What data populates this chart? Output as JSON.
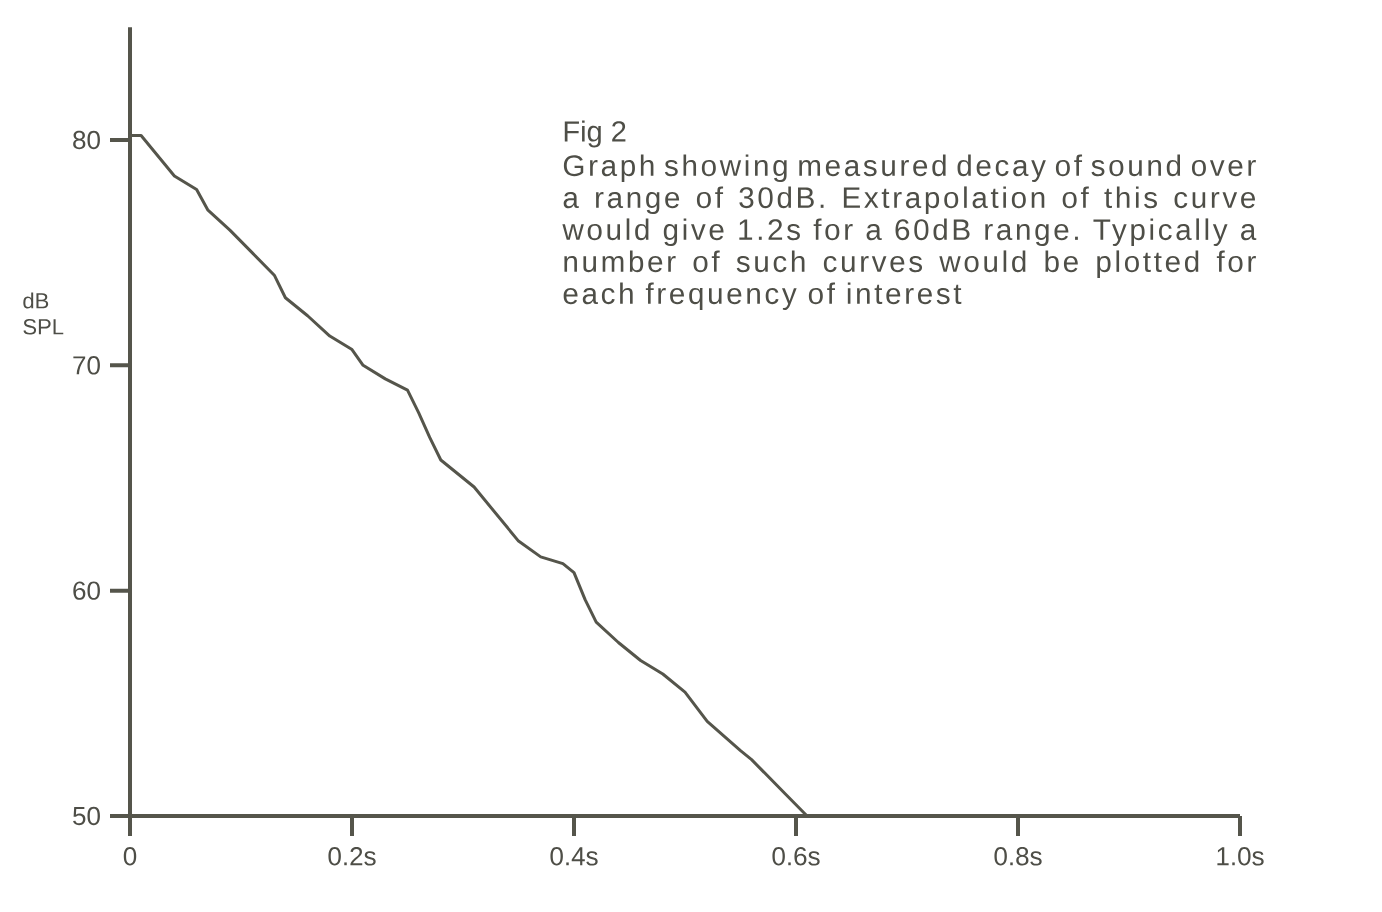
{
  "chart_data": {
    "type": "line",
    "title": "Fig 2",
    "annotations": [
      "Graph showing measured decay of sound over a range of 30dB. Extrapolation of this curve would give 1.2s for a 60dB range. Typically a number of such curves would be plotted for each frequency of interest"
    ],
    "ylabel": "dB SPL",
    "x": [
      0.0,
      0.01,
      0.03,
      0.04,
      0.06,
      0.07,
      0.09,
      0.11,
      0.13,
      0.14,
      0.16,
      0.18,
      0.2,
      0.21,
      0.23,
      0.25,
      0.26,
      0.27,
      0.28,
      0.31,
      0.33,
      0.35,
      0.37,
      0.39,
      0.4,
      0.41,
      0.42,
      0.44,
      0.46,
      0.48,
      0.5,
      0.52,
      0.55,
      0.56,
      0.59,
      0.61
    ],
    "series": [
      {
        "color": "#55554b",
        "values": [
          80.2,
          80.2,
          79.0,
          78.4,
          77.8,
          76.9,
          76.0,
          75.0,
          74.0,
          73.0,
          72.2,
          71.3,
          70.7,
          70.0,
          69.4,
          68.9,
          67.9,
          66.8,
          65.8,
          64.6,
          63.4,
          62.2,
          61.5,
          61.2,
          60.8,
          59.6,
          58.6,
          57.7,
          56.9,
          56.3,
          55.5,
          54.2,
          52.9,
          52.5,
          51.0,
          50.0
        ]
      }
    ],
    "xlim": [
      0,
      1.0
    ],
    "ylim": [
      50,
      85
    ],
    "xticks": [
      0,
      {
        "value": 0.2,
        "label": "0.2s"
      },
      {
        "value": 0.4,
        "label": "0.4s"
      },
      {
        "value": 0.6,
        "label": "0.6s"
      },
      {
        "value": 0.8,
        "label": "0.8s"
      },
      {
        "value": 1.0,
        "label": "1.0s"
      }
    ],
    "yticks": [
      50,
      60,
      70,
      80
    ],
    "marker": "none",
    "line_style": "solid"
  }
}
